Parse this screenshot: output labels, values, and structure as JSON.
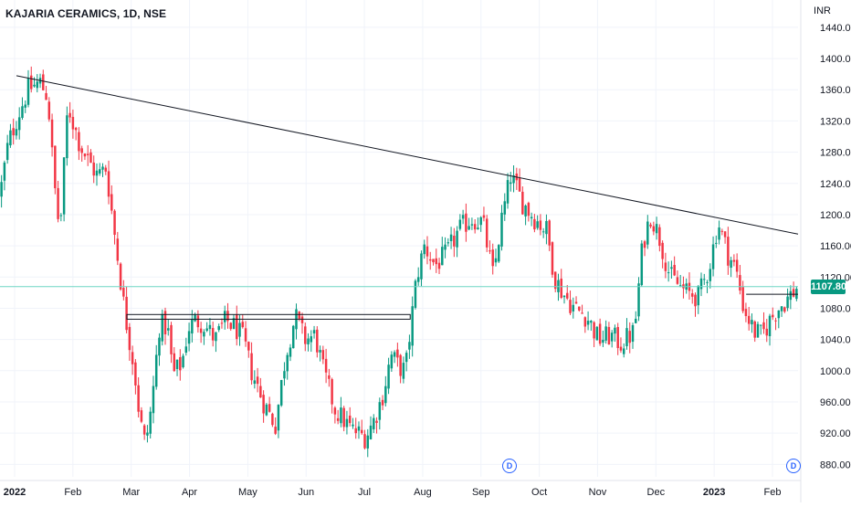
{
  "header": {
    "title": "KAJARIA CERAMICS, 1D, NSE",
    "currency": "INR"
  },
  "colors": {
    "up": "#089981",
    "down": "#f23645",
    "trendline": "#131722",
    "current_line": "#6fd6c4",
    "grid": "#f0f3fa"
  },
  "events": [
    {
      "label": "D",
      "month": "Sep"
    },
    {
      "label": "D",
      "month": "Feb"
    }
  ],
  "chart_data": {
    "type": "candlestick",
    "title": "KAJARIA CERAMICS, 1D, NSE",
    "unit": "INR",
    "ylim": [
      864,
      1475
    ],
    "y_ticks": [
      "880.00",
      "920.00",
      "960.00",
      "1000.00",
      "1040.00",
      "1080.00",
      "1120.00",
      "1160.00",
      "1200.00",
      "1240.00",
      "1280.00",
      "1320.00",
      "1360.00",
      "1400.00",
      "1440.00"
    ],
    "x_labels": [
      {
        "label": "2022",
        "bold": true
      },
      {
        "label": "Feb",
        "bold": false
      },
      {
        "label": "Mar",
        "bold": false
      },
      {
        "label": "Apr",
        "bold": false
      },
      {
        "label": "May",
        "bold": false
      },
      {
        "label": "Jun",
        "bold": false
      },
      {
        "label": "Jul",
        "bold": false
      },
      {
        "label": "Aug",
        "bold": false
      },
      {
        "label": "Sep",
        "bold": false
      },
      {
        "label": "Oct",
        "bold": false
      },
      {
        "label": "Nov",
        "bold": false
      },
      {
        "label": "Dec",
        "bold": false
      },
      {
        "label": "2023",
        "bold": true
      },
      {
        "label": "Feb",
        "bold": false
      }
    ],
    "last_price": 1107.8,
    "last_price_label": "1107.80",
    "trendline": {
      "start": [
        0,
        1378
      ],
      "end": [
        1.0,
        1175
      ]
    },
    "resistance_box": {
      "start_frac": 0.159,
      "end_frac": 0.514,
      "top": 1072,
      "bottom": 1066
    },
    "breakout_level": {
      "start_frac": 0.935,
      "end_frac": 1.0,
      "value": 1098
    },
    "close_path": [
      [
        0.0,
        1225
      ],
      [
        0.01,
        1290
      ],
      [
        0.02,
        1320
      ],
      [
        0.035,
        1360
      ],
      [
        0.05,
        1370
      ],
      [
        0.06,
        1350
      ],
      [
        0.068,
        1240
      ],
      [
        0.075,
        1175
      ],
      [
        0.085,
        1340
      ],
      [
        0.1,
        1290
      ],
      [
        0.11,
        1270
      ],
      [
        0.122,
        1250
      ],
      [
        0.133,
        1260
      ],
      [
        0.143,
        1180
      ],
      [
        0.15,
        1125
      ],
      [
        0.157,
        1070
      ],
      [
        0.168,
        1005
      ],
      [
        0.175,
        940
      ],
      [
        0.182,
        905
      ],
      [
        0.19,
        955
      ],
      [
        0.2,
        1060
      ],
      [
        0.21,
        1055
      ],
      [
        0.217,
        995
      ],
      [
        0.228,
        1010
      ],
      [
        0.236,
        1055
      ],
      [
        0.245,
        1065
      ],
      [
        0.255,
        1060
      ],
      [
        0.27,
        1040
      ],
      [
        0.283,
        1065
      ],
      [
        0.295,
        1055
      ],
      [
        0.305,
        1040
      ],
      [
        0.315,
        1000
      ],
      [
        0.33,
        960
      ],
      [
        0.345,
        930
      ],
      [
        0.358,
        1020
      ],
      [
        0.37,
        1070
      ],
      [
        0.382,
        1040
      ],
      [
        0.395,
        1045
      ],
      [
        0.405,
        1000
      ],
      [
        0.42,
        950
      ],
      [
        0.44,
        925
      ],
      [
        0.458,
        915
      ],
      [
        0.47,
        940
      ],
      [
        0.48,
        970
      ],
      [
        0.49,
        1020
      ],
      [
        0.5,
        1005
      ],
      [
        0.508,
        1000
      ],
      [
        0.515,
        1060
      ],
      [
        0.522,
        1120
      ],
      [
        0.532,
        1160
      ],
      [
        0.545,
        1135
      ],
      [
        0.56,
        1150
      ],
      [
        0.575,
        1180
      ],
      [
        0.59,
        1195
      ],
      [
        0.605,
        1190
      ],
      [
        0.618,
        1120
      ],
      [
        0.628,
        1190
      ],
      [
        0.64,
        1250
      ],
      [
        0.655,
        1215
      ],
      [
        0.67,
        1195
      ],
      [
        0.685,
        1180
      ],
      [
        0.695,
        1120
      ],
      [
        0.705,
        1100
      ],
      [
        0.72,
        1080
      ],
      [
        0.735,
        1070
      ],
      [
        0.75,
        1040
      ],
      [
        0.765,
        1045
      ],
      [
        0.778,
        1035
      ],
      [
        0.795,
        1050
      ],
      [
        0.805,
        1160
      ],
      [
        0.815,
        1200
      ],
      [
        0.825,
        1175
      ],
      [
        0.84,
        1120
      ],
      [
        0.86,
        1100
      ],
      [
        0.875,
        1095
      ],
      [
        0.888,
        1130
      ],
      [
        0.9,
        1190
      ],
      [
        0.912,
        1150
      ],
      [
        0.922,
        1130
      ],
      [
        0.932,
        1080
      ],
      [
        0.945,
        1050
      ],
      [
        0.955,
        1045
      ],
      [
        0.965,
        1065
      ],
      [
        0.975,
        1080
      ],
      [
        0.985,
        1090
      ],
      [
        1.0,
        1108
      ]
    ]
  }
}
